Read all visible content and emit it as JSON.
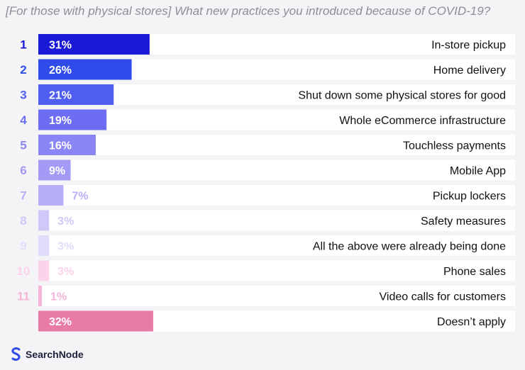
{
  "title": "[For those with physical stores] What new practices you introduced because of COVID-19?",
  "brand": {
    "name": "SearchNode",
    "icon": "searchnode-logo-icon"
  },
  "chart_data": {
    "type": "bar",
    "orientation": "horizontal",
    "xlim": [
      0,
      100
    ],
    "categories": [
      "In-store pickup",
      "Home delivery",
      "Shut down some physical stores for good",
      "Whole eCommerce infrastructure",
      "Touchless payments",
      "Mobile App",
      "Pickup lockers",
      "Safety measures",
      "All the above were already being done",
      "Phone sales",
      "Video calls for customers",
      "Doesn’t apply"
    ],
    "ranks": [
      "1",
      "2",
      "3",
      "4",
      "5",
      "6",
      "7",
      "8",
      "9",
      "10",
      "11",
      ""
    ],
    "values": [
      31,
      26,
      21,
      19,
      16,
      9,
      7,
      3,
      3,
      3,
      1,
      32
    ],
    "value_labels": [
      "31%",
      "26%",
      "21%",
      "19%",
      "16%",
      "9%",
      "7%",
      "3%",
      "3%",
      "3%",
      "1%",
      "32%"
    ],
    "bar_colors": [
      "#1a1ad6",
      "#2f4bea",
      "#4f5df0",
      "#6c6df2",
      "#8a85f4",
      "#a29af5",
      "#b6aff7",
      "#cfc8f8",
      "#e2dcfb",
      "#fbd3ea",
      "#f4b5d8",
      "#e87aa6"
    ],
    "rank_colors": [
      "#1a1ad6",
      "#2f4bea",
      "#4f5df0",
      "#6c6df2",
      "#8a85f4",
      "#a29af5",
      "#b6aff7",
      "#cfc8f8",
      "#e2dcfb",
      "#fbd3ea",
      "#f4b5d8",
      ""
    ],
    "grid": false
  }
}
